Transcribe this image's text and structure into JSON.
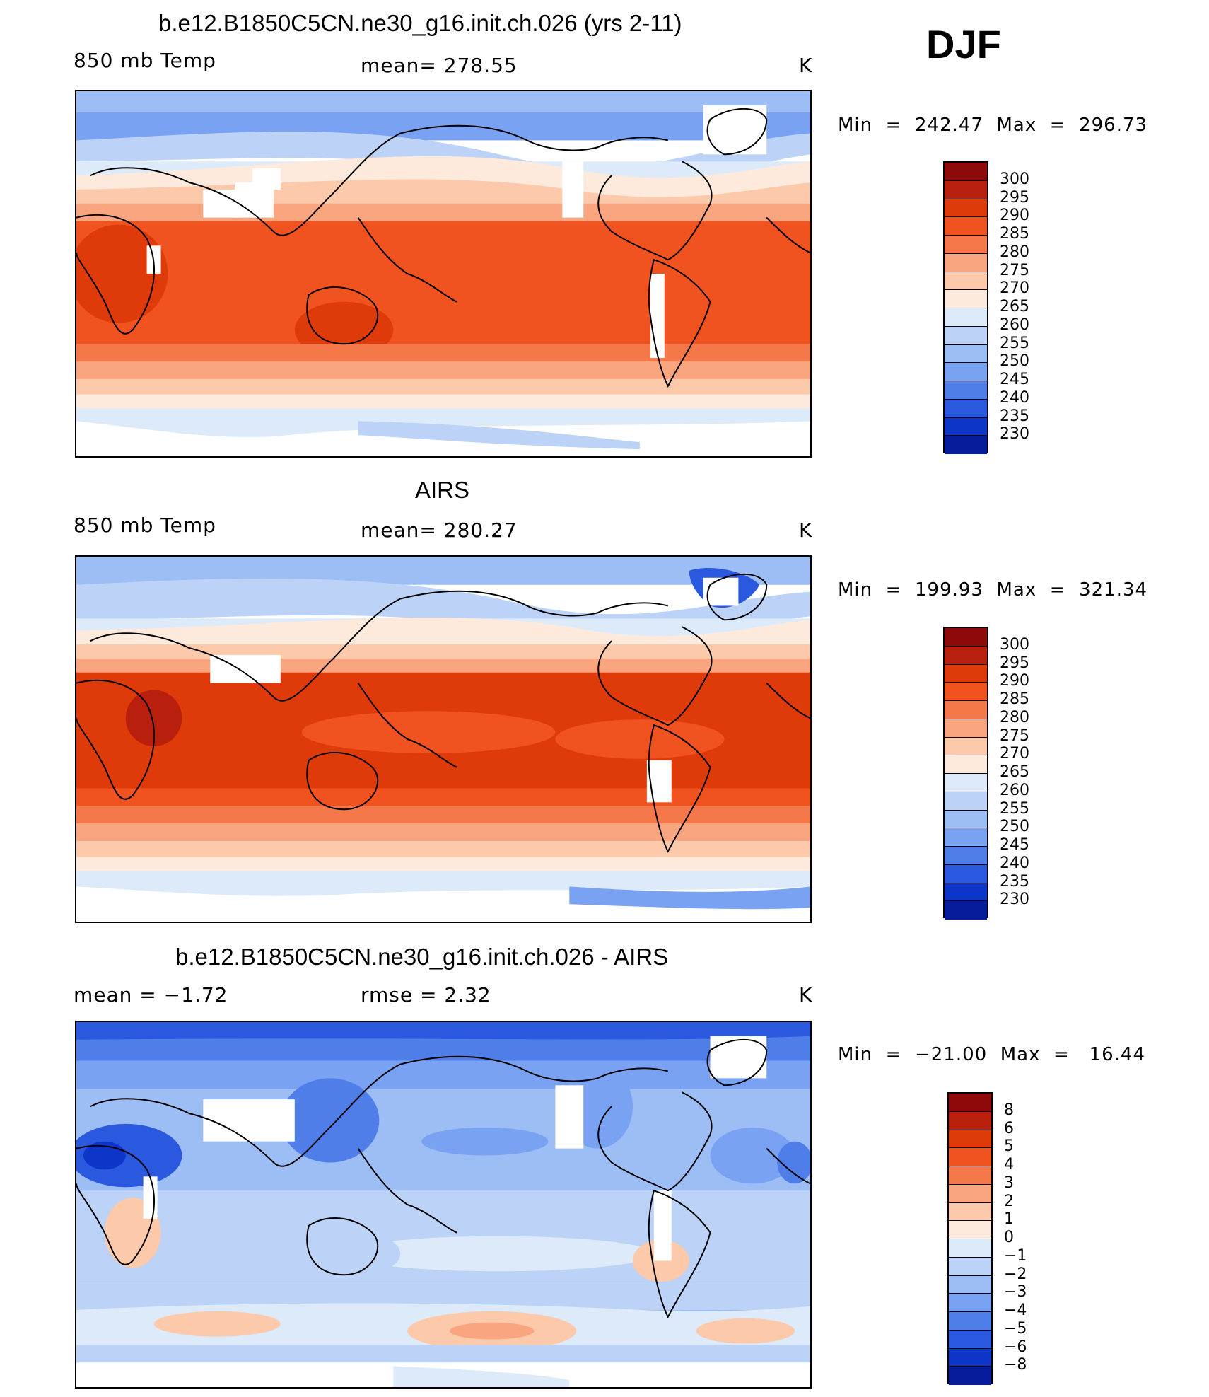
{
  "season": "DJF",
  "panels": [
    {
      "title": "b.e12.B1850C5CN.ne30_g16.init.ch.026 (yrs 2-11)",
      "left": "850 mb Temp",
      "center": "mean=  278.55",
      "right": "K",
      "minmax": "Min  =  242.47  Max  =  296.73"
    },
    {
      "title": "AIRS",
      "left": "850 mb Temp",
      "center": "mean=  280.27",
      "right": "K",
      "minmax": "Min  =  199.93  Max  =  321.34"
    },
    {
      "title": "b.e12.B1850C5CN.ne30_g16.init.ch.026 - AIRS",
      "left": "mean  =    −1.72",
      "center": "rmse  =     2.32",
      "right": "K",
      "minmax": "Min  =  −21.00  Max  =   16.44"
    }
  ],
  "colorbar_abs": {
    "labels": [
      "300",
      "295",
      "290",
      "285",
      "280",
      "275",
      "270",
      "265",
      "260",
      "255",
      "250",
      "245",
      "240",
      "235",
      "230"
    ],
    "colors": [
      "#8e0a0a",
      "#b81f0c",
      "#de3a0a",
      "#f05220",
      "#f4784a",
      "#f9a57f",
      "#fcc9aa",
      "#feeadc",
      "#dceaf9",
      "#bcd3f7",
      "#9dbdf5",
      "#7aa2f2",
      "#4f7ee9",
      "#2a59e0",
      "#0d36c9",
      "#061c9c"
    ]
  },
  "colorbar_diff": {
    "labels": [
      "8",
      "6",
      "5",
      "4",
      "3",
      "2",
      "1",
      "0",
      "−1",
      "−2",
      "−3",
      "−4",
      "−5",
      "−6",
      "−8"
    ],
    "colors": [
      "#8e0a0a",
      "#b81f0c",
      "#de3a0a",
      "#f05220",
      "#f4784a",
      "#f9a57f",
      "#fcc9aa",
      "#feeadc",
      "#dceaf9",
      "#bcd3f7",
      "#9dbdf5",
      "#7aa2f2",
      "#4f7ee9",
      "#2a59e0",
      "#0d36c9",
      "#061c9c"
    ]
  }
}
